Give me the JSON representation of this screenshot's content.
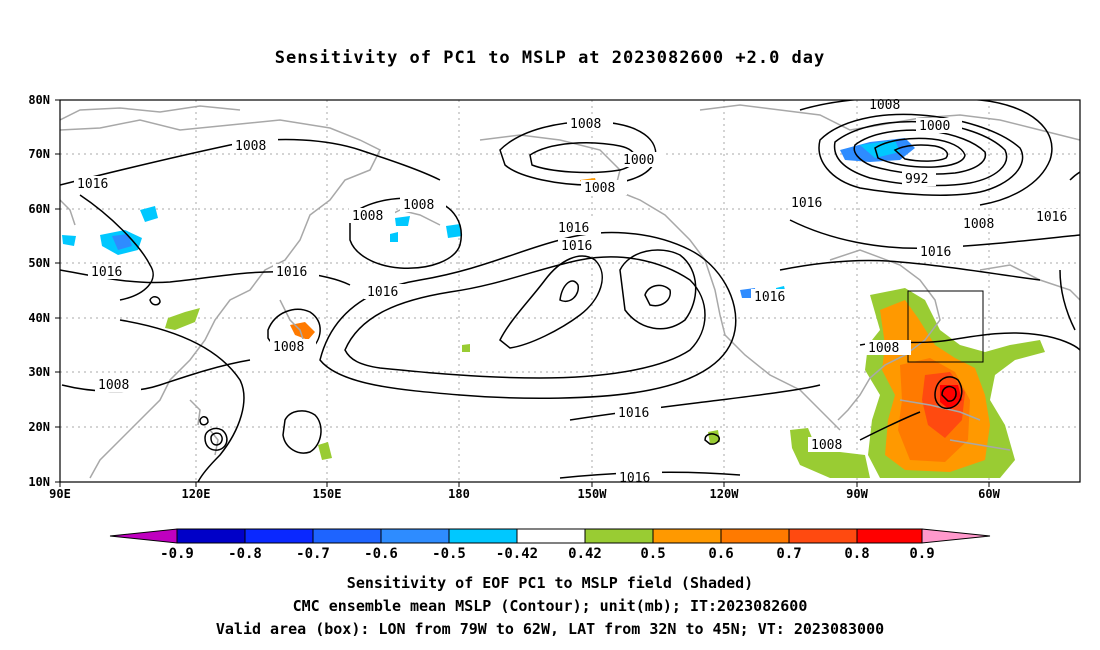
{
  "title": "Sensitivity of PC1 to MSLP at 2023082600 +2.0 day",
  "footer": {
    "line1": "Sensitivity of EOF PC1 to MSLP field (Shaded)",
    "line2": "CMC ensemble mean MSLP (Contour); unit(mb); IT:2023082600",
    "line3": "Valid area (box): LON from 79W to 62W, LAT from 32N to 45N; VT: 2023083000"
  },
  "axes": {
    "lat_labels": [
      "80N",
      "70N",
      "60N",
      "50N",
      "40N",
      "30N",
      "20N",
      "10N"
    ],
    "lon_labels": [
      "90E",
      "120E",
      "150E",
      "180",
      "150W",
      "120W",
      "90W",
      "60W"
    ]
  },
  "contour_labels": [
    "1008",
    "1016",
    "1008",
    "1008",
    "1016",
    "1016",
    "1008",
    "1008",
    "1000",
    "1008",
    "1016",
    "1016",
    "1016",
    "1016",
    "1016",
    "1008",
    "1000",
    "992",
    "1016",
    "1008",
    "1016",
    "1016",
    "1008",
    "1008",
    "1016",
    "1008"
  ],
  "colorbar": {
    "labels": [
      "-0.9",
      "-0.8",
      "-0.7",
      "-0.6",
      "-0.5",
      "-0.42",
      "0.42",
      "0.5",
      "0.6",
      "0.7",
      "0.8",
      "0.9"
    ],
    "colors": [
      "#bf00bf",
      "#0000c8",
      "#0a28ff",
      "#1e64ff",
      "#2e8cff",
      "#00c8ff",
      "#ffffff",
      "#99cc33",
      "#ff9900",
      "#ff7a00",
      "#ff4a10",
      "#ff0000",
      "#ff99cc"
    ]
  },
  "valid_box": {
    "lon_from": "79W",
    "lon_to": "62W",
    "lat_from": "32N",
    "lat_to": "45N"
  }
}
